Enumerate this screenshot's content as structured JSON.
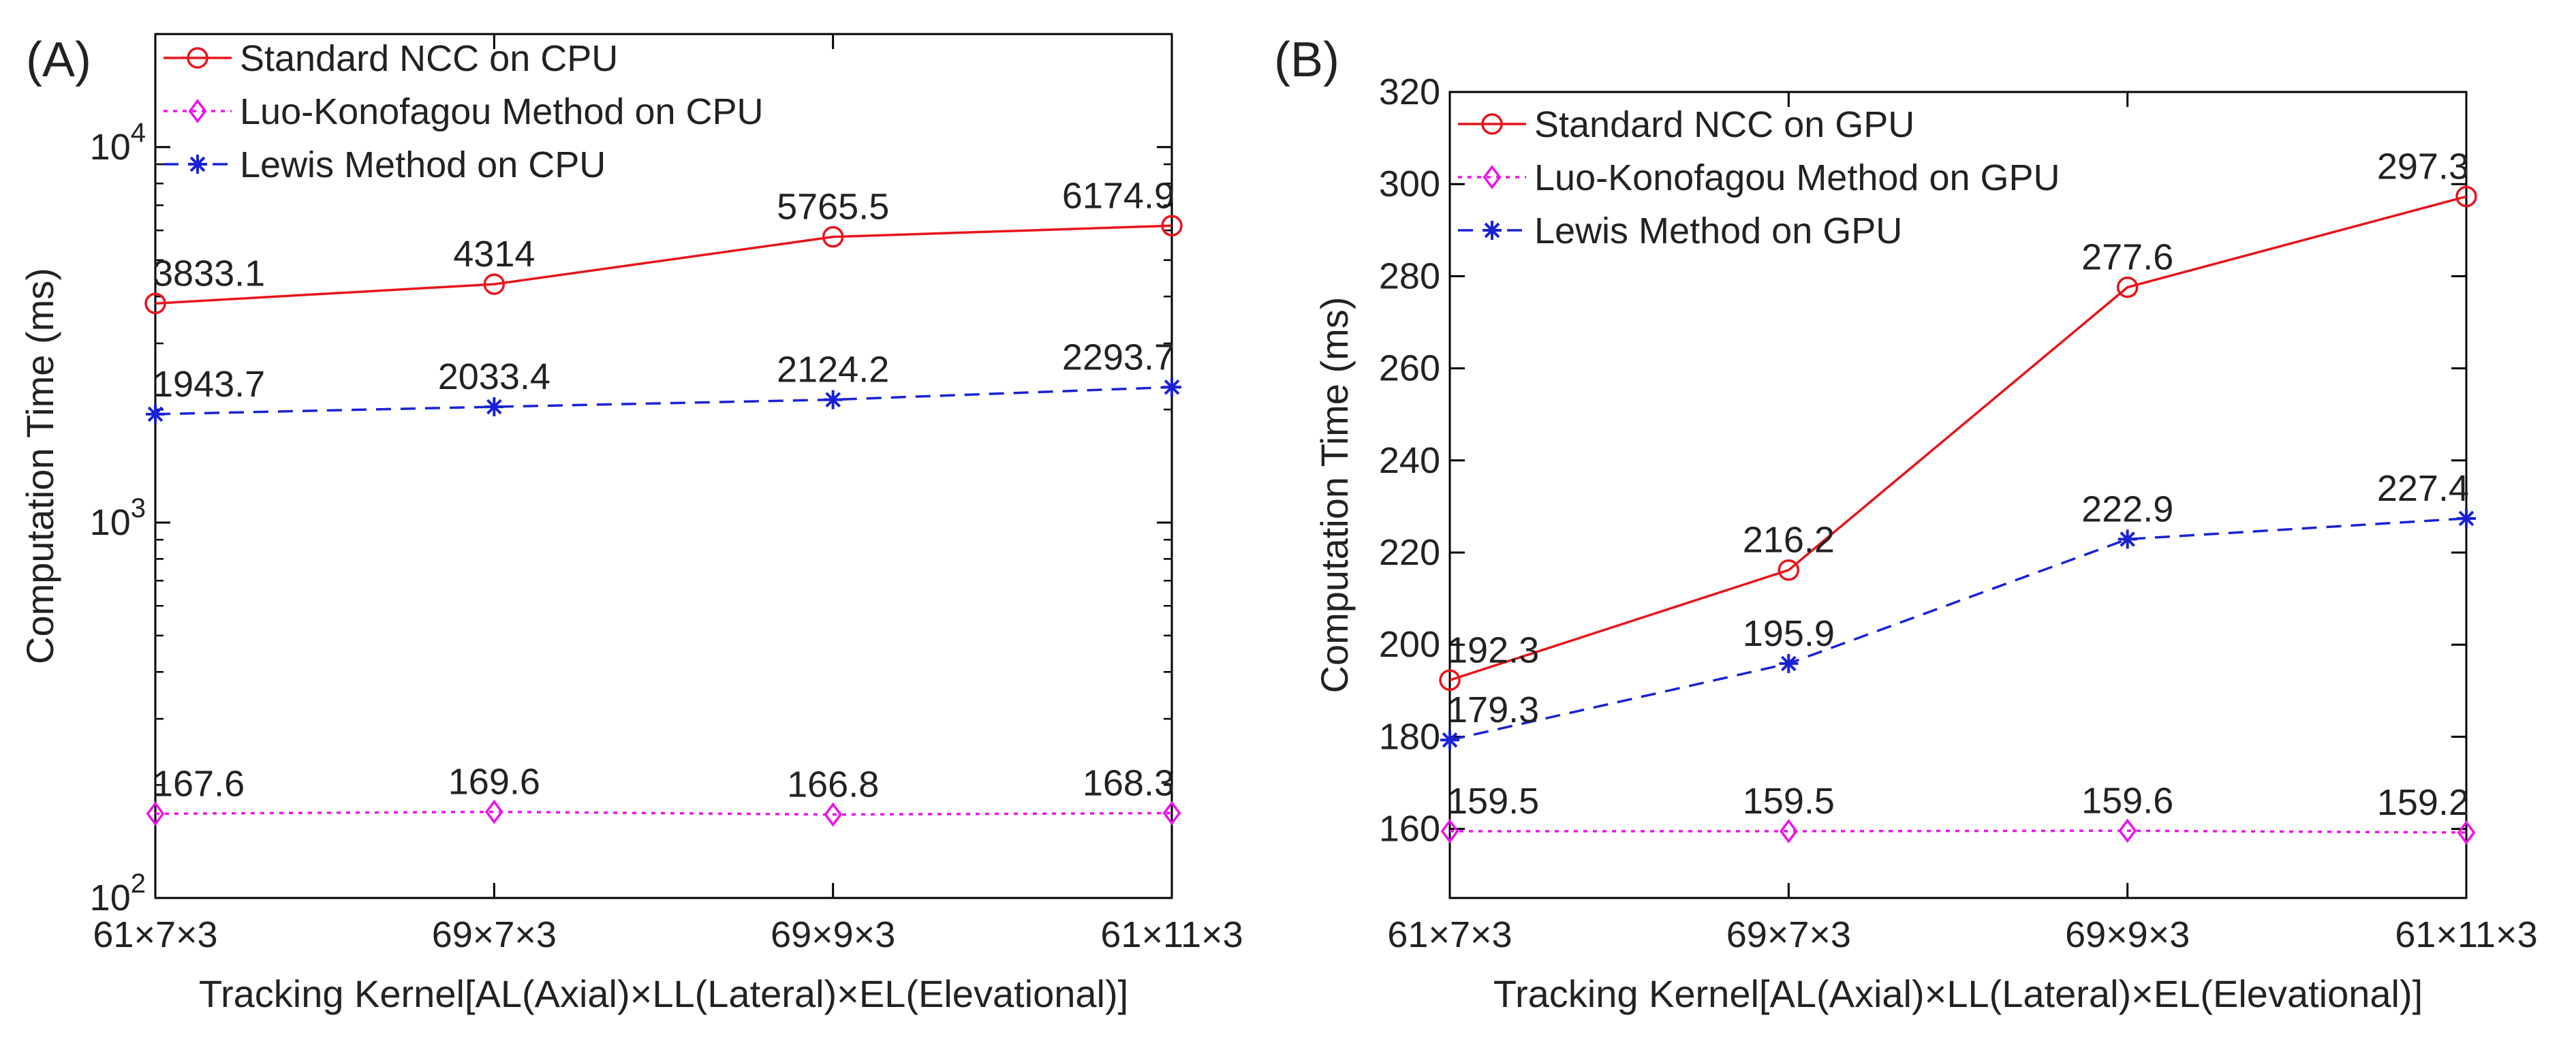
{
  "chart_data": [
    {
      "panel": "(A)",
      "type": "line",
      "yscale": "log",
      "ylim": [
        100,
        20000
      ],
      "yticks": [
        {
          "value": 100,
          "base": "10",
          "exp": "2"
        },
        {
          "value": 1000,
          "base": "10",
          "exp": "3"
        },
        {
          "value": 10000,
          "base": "10",
          "exp": "4"
        }
      ],
      "categories": [
        "61×7×3",
        "69×7×3",
        "69×9×3",
        "61×11×3"
      ],
      "xlabel": "Tracking Kernel[AL(Axial)×LL(Lateral)×EL(Elevational)]",
      "ylabel": "Computation Time (ms)",
      "legend_position": "top-left",
      "series": [
        {
          "name": "Standard NCC on CPU",
          "color": "#e8141b",
          "marker": "circle",
          "line": "solid",
          "values": [
            3833.1,
            4314,
            5765.5,
            6174.9
          ],
          "labels": [
            "3833.1",
            "4314",
            "5765.5",
            "6174.9"
          ]
        },
        {
          "name": "Luo-Konofagou Method on CPU",
          "color": "#ee10ee",
          "marker": "diamond",
          "line": "dotted",
          "values": [
            167.6,
            169.6,
            166.8,
            168.3
          ],
          "labels": [
            "167.6",
            "169.6",
            "166.8",
            "168.3"
          ]
        },
        {
          "name": "Lewis Method on CPU",
          "color": "#1a22d6",
          "marker": "asterisk",
          "line": "dashed",
          "values": [
            1943.7,
            2033.4,
            2124.2,
            2293.7
          ],
          "labels": [
            "1943.7",
            "2033.4",
            "2124.2",
            "2293.7"
          ]
        }
      ]
    },
    {
      "panel": "(B)",
      "type": "line",
      "yscale": "linear",
      "ylim": [
        145,
        320
      ],
      "yticks": [
        {
          "value": 160,
          "label": "160"
        },
        {
          "value": 180,
          "label": "180"
        },
        {
          "value": 200,
          "label": "200"
        },
        {
          "value": 220,
          "label": "220"
        },
        {
          "value": 240,
          "label": "240"
        },
        {
          "value": 260,
          "label": "260"
        },
        {
          "value": 280,
          "label": "280"
        },
        {
          "value": 300,
          "label": "300"
        },
        {
          "value": 320,
          "label": "320"
        }
      ],
      "categories": [
        "61×7×3",
        "69×7×3",
        "69×9×3",
        "61×11×3"
      ],
      "xlabel": "Tracking Kernel[AL(Axial)×LL(Lateral)×EL(Elevational)]",
      "ylabel": "Computation Time (ms)",
      "legend_position": "top-left",
      "series": [
        {
          "name": "Standard NCC on GPU",
          "color": "#e8141b",
          "marker": "circle",
          "line": "solid",
          "values": [
            192.3,
            216.2,
            277.6,
            297.3
          ],
          "labels": [
            "192.3",
            "216.2",
            "277.6",
            "297.3"
          ]
        },
        {
          "name": "Luo-Konofagou Method on GPU",
          "color": "#ee10ee",
          "marker": "diamond",
          "line": "dotted",
          "values": [
            159.5,
            159.5,
            159.6,
            159.2
          ],
          "labels": [
            "159.5",
            "159.5",
            "159.6",
            "159.2"
          ]
        },
        {
          "name": "Lewis Method on GPU",
          "color": "#1a22d6",
          "marker": "asterisk",
          "line": "dashed",
          "values": [
            179.3,
            195.9,
            222.9,
            227.4
          ],
          "labels": [
            "179.3",
            "195.9",
            "222.9",
            "227.4"
          ]
        }
      ]
    }
  ]
}
